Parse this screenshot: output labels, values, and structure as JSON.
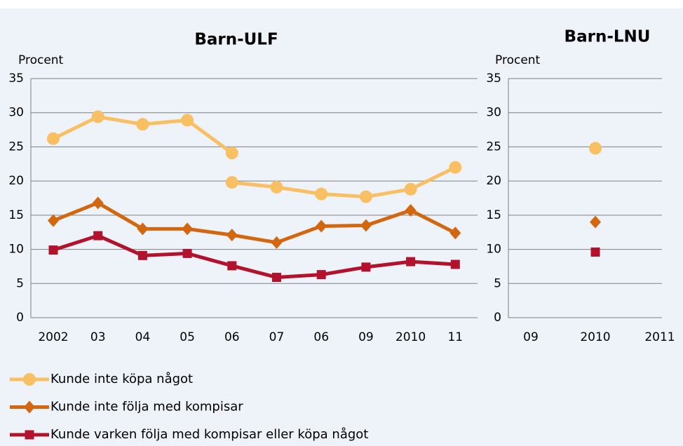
{
  "chart_data": [
    {
      "type": "line",
      "title": "Barn-ULF",
      "y_label": "Procent",
      "categories": [
        "2002",
        "03",
        "04",
        "05",
        "06",
        "07",
        "06",
        "09",
        "2010",
        "11"
      ],
      "ylim": [
        0,
        35
      ],
      "yticks": [
        0,
        5,
        10,
        15,
        20,
        25,
        30,
        35
      ],
      "grid": true,
      "legend": "bottom",
      "series": [
        {
          "name": "Kunde inte köpa något",
          "color": "#f9bf63",
          "marker": "circle",
          "values": [
            26.2,
            29.4,
            28.3,
            28.9,
            24.1,
            null,
            null,
            null,
            null,
            null
          ]
        },
        {
          "color": "#f9bf63",
          "marker": "circle",
          "values": [
            null,
            null,
            null,
            null,
            19.8,
            19.1,
            18.1,
            17.7,
            18.8,
            22.0
          ]
        },
        {
          "name": "Kunde inte följa med  kompisar",
          "color": "#d2670f",
          "marker": "diamond",
          "values": [
            14.2,
            16.8,
            13.0,
            13.0,
            12.1,
            11.0,
            13.4,
            13.5,
            15.7,
            12.4
          ]
        },
        {
          "name": "Kunde varken följa med  kompisar eller köpa något",
          "color": "#b3122c",
          "marker": "square",
          "values": [
            9.9,
            12.0,
            9.1,
            9.4,
            7.6,
            5.9,
            6.3,
            7.4,
            8.2,
            7.8
          ]
        }
      ]
    },
    {
      "type": "line",
      "title": "Barn-LNU",
      "y_label": "Procent",
      "categories": [
        "09",
        "2010",
        "2011"
      ],
      "ylim": [
        0,
        35
      ],
      "yticks": [
        0,
        5,
        10,
        15,
        20,
        25,
        30,
        35
      ],
      "grid": true,
      "series": [
        {
          "color": "#f9bf63",
          "marker": "circle",
          "values": [
            null,
            24.8,
            null
          ]
        },
        {
          "color": "#d2670f",
          "marker": "diamond",
          "values": [
            null,
            14.0,
            null
          ]
        },
        {
          "color": "#b3122c",
          "marker": "square",
          "values": [
            null,
            9.6,
            null
          ]
        }
      ]
    }
  ]
}
